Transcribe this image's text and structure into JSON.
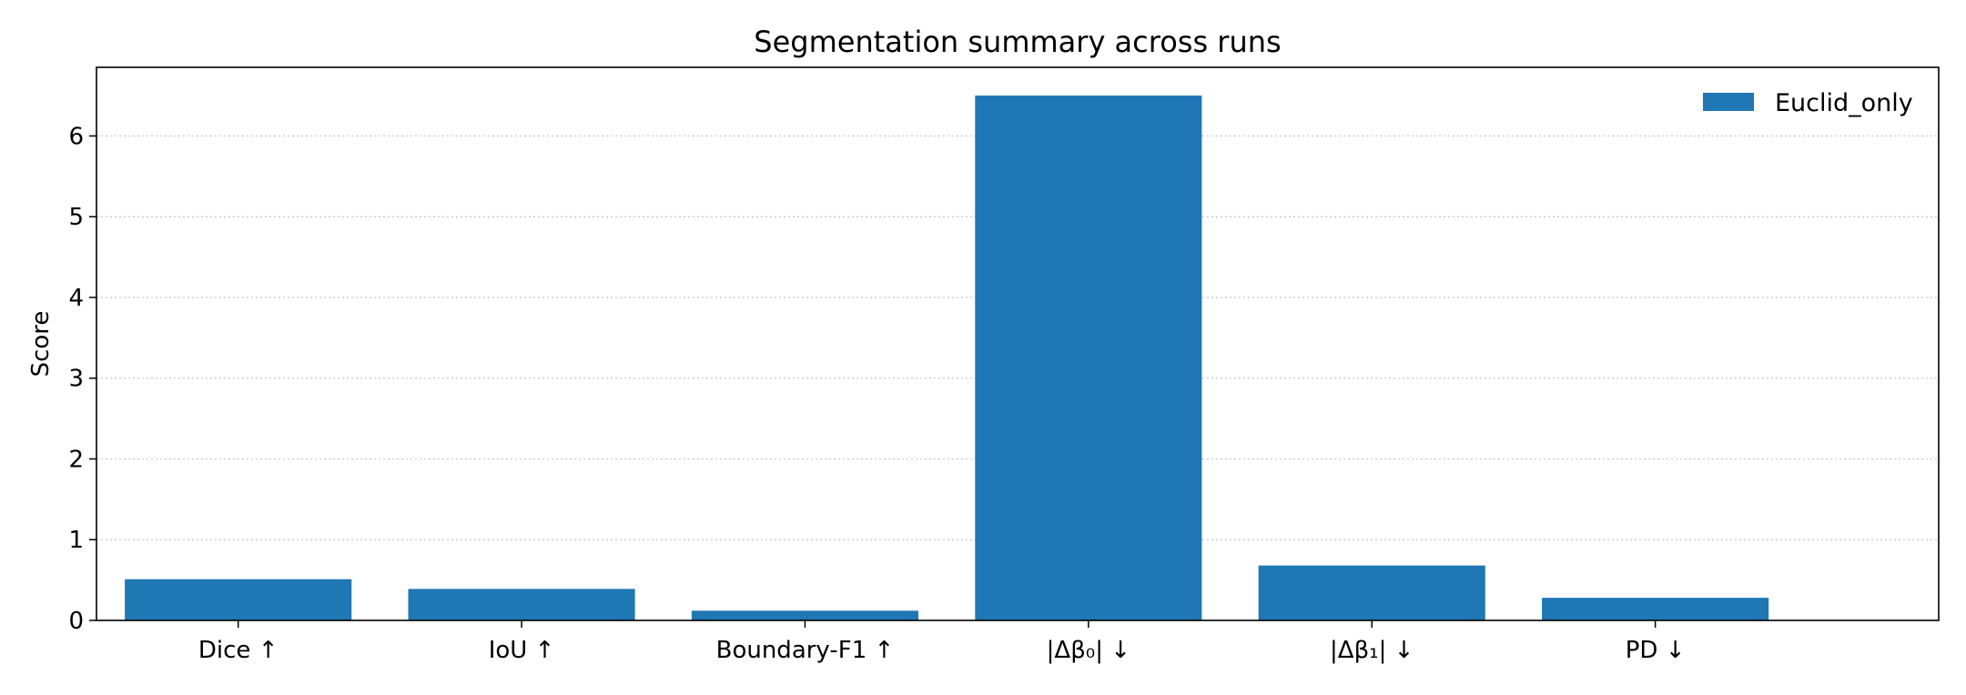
{
  "chart_data": {
    "type": "bar",
    "title": "Segmentation summary across runs",
    "xlabel": "",
    "ylabel": "Score",
    "categories": [
      "Dice ↑",
      "IoU ↑",
      "Boundary-F1 ↑",
      "|Δβ₀| ↓",
      "|Δβ₁| ↓",
      "PD ↓"
    ],
    "series": [
      {
        "name": "Euclid_only",
        "color": "#1f77b4",
        "values": [
          0.51,
          0.39,
          0.12,
          6.5,
          0.68,
          0.28
        ]
      }
    ],
    "ylim": [
      0,
      6.85
    ],
    "yticks": [
      0,
      1,
      2,
      3,
      4,
      5,
      6
    ],
    "grid": "y-dotted",
    "legend_position": "top-right"
  }
}
